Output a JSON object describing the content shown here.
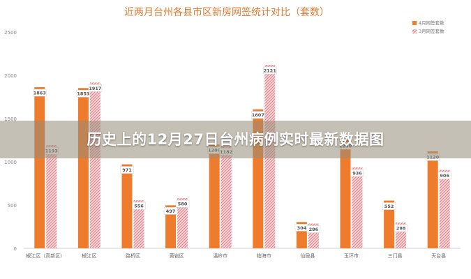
{
  "chart_data": {
    "type": "bar",
    "title": "近两月台州各县市区新房网签统计对比（套数）",
    "categories": [
      "椒江区（高新区）",
      "椒江区",
      "路桥区",
      "黄岩区",
      "温岭市",
      "临海市",
      "仙居县",
      "玉环市",
      "三门县",
      "天台县"
    ],
    "series": [
      {
        "name": "4月网签套数",
        "values": [
          1863,
          1853,
          971,
          497,
          1200,
          1607,
          304,
          1250,
          552,
          1120
        ]
      },
      {
        "name": "3月网签套数",
        "values": [
          1193,
          1917,
          556,
          580,
          1182,
          2121,
          286,
          936,
          298,
          906
        ]
      }
    ],
    "ylim": [
      0,
      2500
    ],
    "yticks": [
      0,
      500,
      1000,
      1500,
      2000,
      2500
    ],
    "grid": false,
    "legend": "top-right",
    "colors": {
      "series1": "#ef7b2c",
      "series2": "#e8a2a8",
      "title": "#e0782e"
    }
  },
  "overlay": {
    "text": "历史上的12月27日台州病例实时最新数据图"
  }
}
